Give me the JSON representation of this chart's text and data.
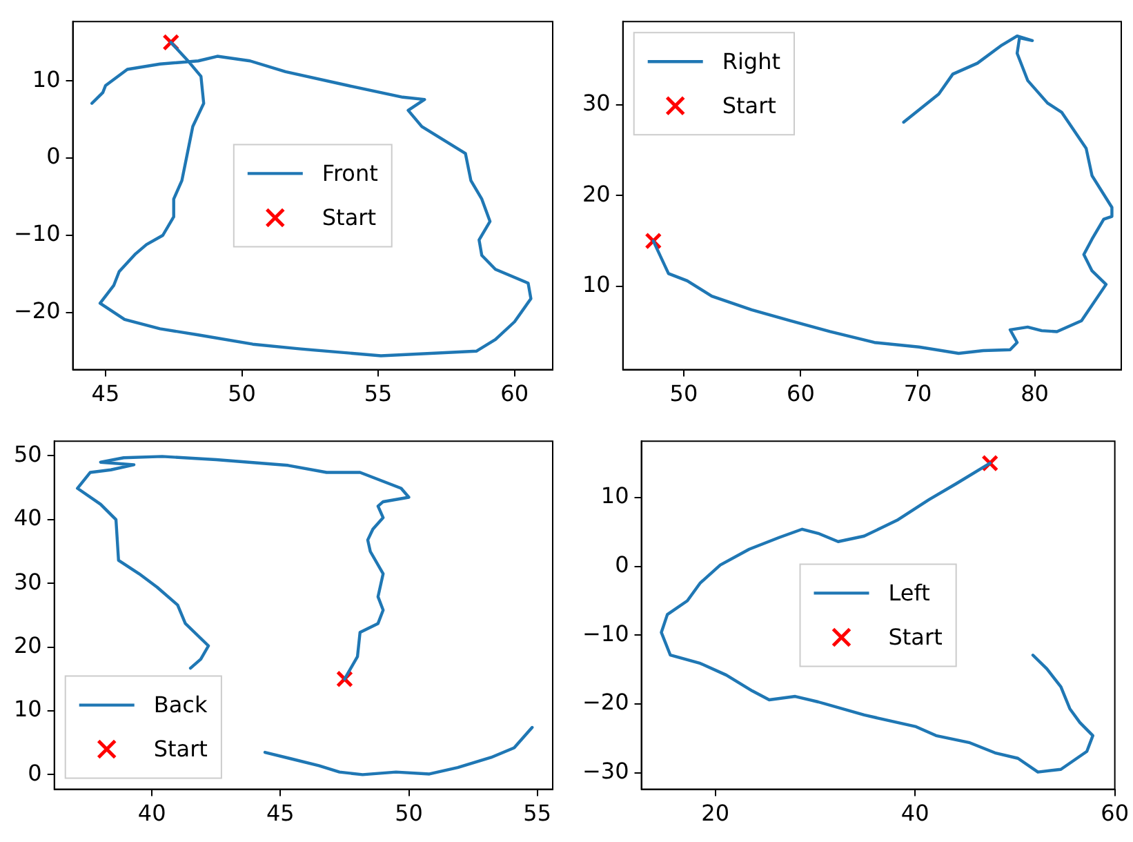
{
  "chart_data": [
    {
      "type": "line",
      "legend": "center",
      "grid": false,
      "xlim": [
        43.8,
        61.4
      ],
      "ylim": [
        -27.4,
        17.7
      ],
      "xticks": [
        45,
        50,
        55,
        60
      ],
      "yticks": [
        {
          "value": -20,
          "label": "−20"
        },
        {
          "value": -10,
          "label": "−10"
        },
        0,
        10
      ],
      "series": [
        {
          "name": "Front",
          "color": "#1f77b4",
          "marker": "none",
          "x": [
            47.4,
            48.05,
            48.5,
            48.6,
            48.2,
            48.0,
            47.8,
            47.5,
            47.5,
            47.1,
            46.5,
            46.1,
            45.5,
            45.3,
            44.8,
            45.7,
            47.0,
            48.4,
            50.4,
            52.1,
            55.1,
            58.6,
            59.3,
            60.0,
            60.6,
            60.5,
            59.3,
            58.8,
            58.7,
            59.1,
            58.8,
            58.4,
            58.2,
            56.6,
            56.1,
            56.7,
            55.9,
            53.9,
            51.6,
            50.3,
            49.1,
            48.4,
            47.0,
            45.8,
            45.0,
            44.9,
            44.5
          ],
          "values": [
            15,
            12.5,
            10.6,
            7.1,
            4.1,
            0.6,
            -2.9,
            -5.3,
            -7.6,
            -10,
            -11.2,
            -12.4,
            -14.7,
            -16.5,
            -18.8,
            -20.9,
            -22.1,
            -22.9,
            -24.1,
            -24.7,
            -25.6,
            -25.0,
            -23.5,
            -21.2,
            -18.2,
            -16.2,
            -14.4,
            -12.6,
            -10.6,
            -8.2,
            -5.3,
            -2.9,
            0.6,
            4.1,
            6.2,
            7.6,
            7.9,
            9.4,
            11.2,
            12.6,
            13.2,
            12.6,
            12.2,
            11.5,
            9.4,
            8.5,
            7.1
          ]
        },
        {
          "name": "Start",
          "type": "scatter",
          "color": "#ff0000",
          "marker": "cross",
          "x": [
            47.4
          ],
          "values": [
            15
          ]
        }
      ]
    },
    {
      "type": "line",
      "legend": "top left",
      "grid": false,
      "xlim": [
        44.8,
        87.4
      ],
      "ylim": [
        0.8,
        39.2
      ],
      "xticks": [
        50,
        60,
        70,
        80
      ],
      "yticks": [
        10,
        20,
        30
      ],
      "series": [
        {
          "name": "Right",
          "color": "#1f77b4",
          "marker": "none",
          "x": [
            47.4,
            48.7,
            50.3,
            52.4,
            55.8,
            59.1,
            62.5,
            66.3,
            70.1,
            73.5,
            75.6,
            77.9,
            78.5,
            77.9,
            79.4,
            80.6,
            81.9,
            84.0,
            86.1,
            84.9,
            84.2,
            84.9,
            85.9,
            86.6,
            86.6,
            84.9,
            84.4,
            82.3,
            81.1,
            79.4,
            78.5,
            78.7,
            79.8,
            78.5,
            77.2,
            75.1,
            73.0,
            71.8,
            68.8
          ],
          "values": [
            15,
            11.4,
            10.6,
            8.9,
            7.4,
            6.2,
            5.0,
            3.8,
            3.3,
            2.6,
            2.9,
            3.0,
            3.8,
            5.2,
            5.5,
            5.1,
            5.0,
            6.2,
            10.2,
            11.7,
            13.5,
            15.2,
            17.4,
            17.7,
            18.7,
            22.2,
            25.2,
            29.2,
            30.2,
            32.7,
            35.7,
            37.4,
            37.1,
            37.6,
            36.6,
            34.6,
            33.4,
            31.2,
            28.1
          ]
        },
        {
          "name": "Start",
          "type": "scatter",
          "color": "#ff0000",
          "marker": "cross",
          "x": [
            47.4
          ],
          "values": [
            15
          ]
        }
      ]
    },
    {
      "type": "line",
      "legend": "bottom left",
      "grid": false,
      "xlim": [
        36.2,
        55.6
      ],
      "ylim": [
        -2.3,
        52.3
      ],
      "xticks": [
        40,
        45,
        50,
        55
      ],
      "yticks": [
        0,
        10,
        20,
        30,
        40,
        50
      ],
      "series": [
        {
          "name": "Back",
          "color": "#1f77b4",
          "marker": "none",
          "x": [
            47.5,
            48.0,
            48.1,
            48.8,
            49.0,
            48.8,
            49.0,
            48.5,
            48.4,
            48.6,
            49.0,
            48.8,
            49.0,
            50.0,
            49.7,
            48.1,
            46.8,
            45.3,
            42.5,
            40.4,
            38.9,
            38.0,
            39.3,
            38.4,
            37.6,
            37.1,
            38.0,
            38.6,
            38.7,
            39.5,
            40.2,
            41.0,
            41.3,
            42.2,
            41.9,
            41.5,
            null,
            44.4,
            45.4,
            46.5,
            47.3,
            48.2,
            49.5,
            50.8,
            51.9,
            53.2,
            54.1,
            54.8
          ],
          "values": [
            15,
            18.5,
            22.3,
            23.7,
            25.8,
            27.9,
            31.5,
            35.0,
            36.8,
            38.5,
            40.3,
            42.1,
            42.8,
            43.5,
            44.9,
            47.4,
            47.4,
            48.5,
            49.4,
            49.9,
            49.7,
            49.0,
            48.6,
            47.8,
            47.4,
            44.9,
            42.4,
            40.0,
            33.6,
            31.5,
            29.4,
            26.6,
            23.7,
            20.2,
            18.1,
            16.7,
            null,
            3.5,
            2.5,
            1.4,
            0.4,
            0,
            0.4,
            0.1,
            1.1,
            2.7,
            4.2,
            7.4
          ]
        },
        {
          "name": "Start",
          "type": "scatter",
          "color": "#ff0000",
          "marker": "cross",
          "x": [
            47.5
          ],
          "values": [
            15
          ]
        }
      ]
    },
    {
      "type": "line",
      "legend": "center",
      "grid": false,
      "xlim": [
        12.6,
        60
      ],
      "ylim": [
        -32.4,
        18.2
      ],
      "xticks": [
        20,
        40,
        60
      ],
      "yticks": [
        {
          "value": -30,
          "label": "−30"
        },
        {
          "value": -20,
          "label": "−20"
        },
        {
          "value": -10,
          "label": "−10"
        },
        0,
        10
      ],
      "series": [
        {
          "name": "Left",
          "color": "#1f77b4",
          "marker": "none",
          "x": [
            47.5,
            44.1,
            41.4,
            38.2,
            34.9,
            32.3,
            30.3,
            28.7,
            26.4,
            23.4,
            20.5,
            18.5,
            17.2,
            15.2,
            14.6,
            15.5,
            18.5,
            21.1,
            23.7,
            25.4,
            28.0,
            30.3,
            34.9,
            40.1,
            42.1,
            45.4,
            48.0,
            50.3,
            52.3,
            54.6,
            57.2,
            57.8,
            56.5,
            55.5,
            54.6,
            53.2,
            51.8
          ],
          "values": [
            15,
            12.0,
            9.7,
            6.7,
            4.4,
            3.6,
            4.8,
            5.4,
            4.2,
            2.5,
            0.2,
            -2.4,
            -5.0,
            -7.0,
            -9.6,
            -12.9,
            -14.1,
            -15.8,
            -18.1,
            -19.4,
            -18.9,
            -19.7,
            -21.6,
            -23.3,
            -24.6,
            -25.6,
            -27.1,
            -27.9,
            -29.9,
            -29.5,
            -26.9,
            -24.6,
            -22.7,
            -20.7,
            -17.5,
            -14.9,
            -12.9
          ]
        },
        {
          "name": "Start",
          "type": "scatter",
          "color": "#ff0000",
          "marker": "cross",
          "x": [
            47.5
          ],
          "values": [
            15
          ]
        }
      ]
    }
  ]
}
